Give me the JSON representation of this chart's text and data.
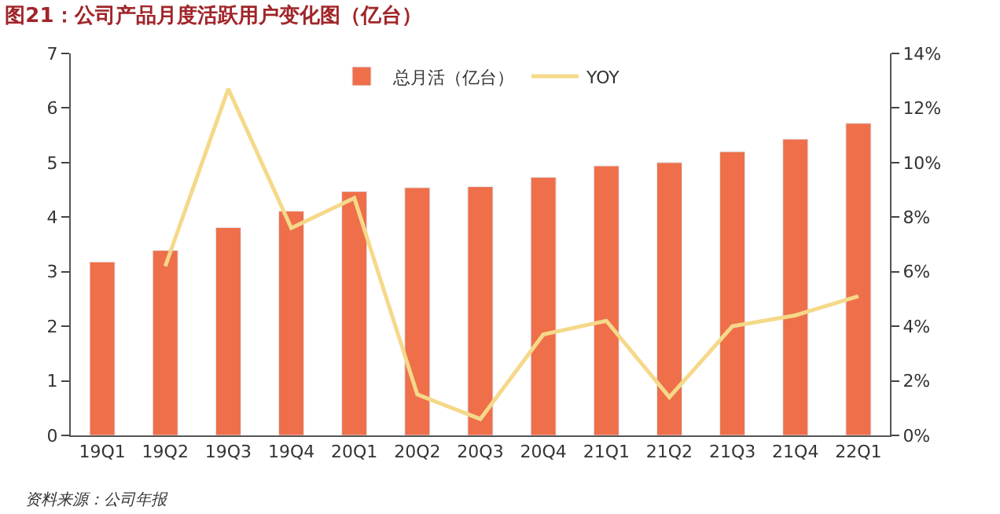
{
  "chart_data": {
    "type": "bar",
    "title": "图21：公司产品月度活跃用户变化图（亿台）",
    "categories": [
      "19Q1",
      "19Q2",
      "19Q3",
      "19Q4",
      "20Q1",
      "20Q2",
      "20Q3",
      "20Q4",
      "21Q1",
      "21Q2",
      "21Q3",
      "21Q4",
      "22Q1"
    ],
    "series": [
      {
        "name": "总月活（亿台）",
        "color": "#ee6f4a",
        "values": [
          3.18,
          3.39,
          3.81,
          4.11,
          4.47,
          4.54,
          4.56,
          4.73,
          4.94,
          5.0,
          5.2,
          5.43,
          5.72
        ]
      },
      {
        "name": "YOY",
        "type": "line",
        "axis": "y2",
        "color": "#f5d98a",
        "values": [
          null,
          6.2,
          12.7,
          7.6,
          8.7,
          1.5,
          0.6,
          3.7,
          4.2,
          1.4,
          4.0,
          4.4,
          5.1
        ]
      }
    ],
    "ylim": [
      0,
      7
    ],
    "yticks": [
      0,
      1,
      2,
      3,
      4,
      5,
      6,
      7
    ],
    "y2lim": [
      0,
      14
    ],
    "y2ticks": [
      {
        "value": 0,
        "label": "0%"
      },
      {
        "value": 2,
        "label": "2%"
      },
      {
        "value": 4,
        "label": "4%"
      },
      {
        "value": 6,
        "label": "6%"
      },
      {
        "value": 8,
        "label": "8%"
      },
      {
        "value": 10,
        "label": "10%"
      },
      {
        "value": 12,
        "label": "12%"
      },
      {
        "value": 14,
        "label": "14%"
      }
    ],
    "legend": "top",
    "marker": "none",
    "annotations": [
      "资料来源：公司年报"
    ]
  }
}
